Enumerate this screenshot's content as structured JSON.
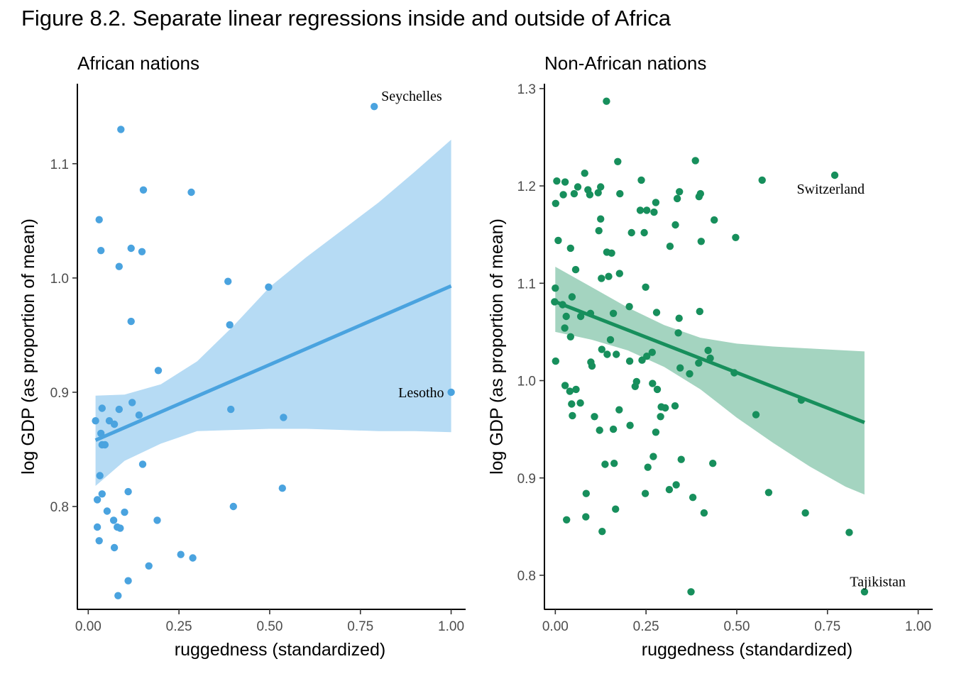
{
  "figure_title": "Figure 8.2. Separate linear regressions inside and outside of Africa",
  "chart_data": [
    {
      "type": "scatter",
      "title": "African nations",
      "xlabel": "ruggedness (standardized)",
      "ylabel": "log GDP (as proportion of mean)",
      "xlim": [
        -0.03,
        1.04
      ],
      "ylim": [
        0.71,
        1.17
      ],
      "xticks": [
        0,
        0.25,
        0.5,
        0.75,
        1
      ],
      "xtick_labels": [
        "0.00",
        "0.25",
        "0.50",
        "0.75",
        "1.00"
      ],
      "yticks": [
        0.8,
        0.9,
        1.0,
        1.1
      ],
      "ytick_labels": [
        "0.8",
        "0.9",
        "1.0",
        "1.1"
      ],
      "color": "#4aa3df",
      "band_color": "#b6dbf4",
      "grid": false,
      "points": [
        {
          "x": 0.788,
          "y": 1.15
        },
        {
          "x": 0.09,
          "y": 1.13
        },
        {
          "x": 0.152,
          "y": 1.077
        },
        {
          "x": 0.284,
          "y": 1.075
        },
        {
          "x": 0.03,
          "y": 1.051
        },
        {
          "x": 0.035,
          "y": 1.024
        },
        {
          "x": 0.118,
          "y": 1.026
        },
        {
          "x": 0.148,
          "y": 1.023
        },
        {
          "x": 0.085,
          "y": 1.01
        },
        {
          "x": 0.385,
          "y": 0.997
        },
        {
          "x": 0.497,
          "y": 0.992
        },
        {
          "x": 0.118,
          "y": 0.962
        },
        {
          "x": 0.39,
          "y": 0.959
        },
        {
          "x": 0.193,
          "y": 0.919
        },
        {
          "x": 1.0,
          "y": 0.9
        },
        {
          "x": 0.121,
          "y": 0.891
        },
        {
          "x": 0.085,
          "y": 0.885
        },
        {
          "x": 0.393,
          "y": 0.885
        },
        {
          "x": 0.038,
          "y": 0.886
        },
        {
          "x": 0.14,
          "y": 0.88
        },
        {
          "x": 0.538,
          "y": 0.878
        },
        {
          "x": 0.02,
          "y": 0.875
        },
        {
          "x": 0.058,
          "y": 0.875
        },
        {
          "x": 0.072,
          "y": 0.872
        },
        {
          "x": 0.035,
          "y": 0.864
        },
        {
          "x": 0.038,
          "y": 0.854
        },
        {
          "x": 0.046,
          "y": 0.854
        },
        {
          "x": 0.15,
          "y": 0.837
        },
        {
          "x": 0.032,
          "y": 0.827
        },
        {
          "x": 0.535,
          "y": 0.816
        },
        {
          "x": 0.11,
          "y": 0.813
        },
        {
          "x": 0.038,
          "y": 0.811
        },
        {
          "x": 0.025,
          "y": 0.806
        },
        {
          "x": 0.4,
          "y": 0.8
        },
        {
          "x": 0.052,
          "y": 0.796
        },
        {
          "x": 0.1,
          "y": 0.795
        },
        {
          "x": 0.19,
          "y": 0.788
        },
        {
          "x": 0.07,
          "y": 0.788
        },
        {
          "x": 0.025,
          "y": 0.782
        },
        {
          "x": 0.08,
          "y": 0.782
        },
        {
          "x": 0.088,
          "y": 0.781
        },
        {
          "x": 0.03,
          "y": 0.77
        },
        {
          "x": 0.072,
          "y": 0.764
        },
        {
          "x": 0.255,
          "y": 0.758
        },
        {
          "x": 0.288,
          "y": 0.755
        },
        {
          "x": 0.167,
          "y": 0.748
        },
        {
          "x": 0.11,
          "y": 0.735
        },
        {
          "x": 0.082,
          "y": 0.722
        }
      ],
      "regression_line": {
        "x": [
          0.02,
          1.0
        ],
        "y": [
          0.858,
          0.993
        ]
      },
      "confidence_band": {
        "x": [
          0.02,
          0.1,
          0.2,
          0.3,
          0.4,
          0.5,
          0.6,
          0.7,
          0.8,
          0.9,
          1.0
        ],
        "upper": [
          0.897,
          0.898,
          0.907,
          0.927,
          0.958,
          0.992,
          1.018,
          1.042,
          1.066,
          1.093,
          1.121
        ],
        "lower": [
          0.818,
          0.84,
          0.855,
          0.866,
          0.867,
          0.868,
          0.868,
          0.867,
          0.866,
          0.866,
          0.865
        ]
      },
      "annotations": [
        {
          "text": "Seychelles",
          "x": 0.788,
          "y": 1.15,
          "anchor": "start",
          "dx": 10,
          "dy": -8
        },
        {
          "text": "Lesotho",
          "x": 1.0,
          "y": 0.9,
          "anchor": "end",
          "dx": -10,
          "dy": 7
        }
      ]
    },
    {
      "type": "scatter",
      "title": "Non-African nations",
      "xlabel": "ruggedness (standardized)",
      "ylabel": "log GDP (as proportion of mean)",
      "xlim": [
        -0.03,
        1.04
      ],
      "ylim": [
        0.765,
        1.305
      ],
      "xticks": [
        0,
        0.25,
        0.5,
        0.75,
        1
      ],
      "xtick_labels": [
        "0.00",
        "0.25",
        "0.50",
        "0.75",
        "1.00"
      ],
      "yticks": [
        0.8,
        0.9,
        1.0,
        1.1,
        1.2,
        1.3
      ],
      "ytick_labels": [
        "0.8",
        "0.9",
        "1.0",
        "1.1",
        "1.2",
        "1.3"
      ],
      "color": "#178f5c",
      "band_color": "#a4d4c0",
      "grid": false,
      "points": [
        {
          "x": 0.141,
          "y": 1.287
        },
        {
          "x": 0.172,
          "y": 1.225
        },
        {
          "x": 0.386,
          "y": 1.226
        },
        {
          "x": 0.081,
          "y": 1.213
        },
        {
          "x": 0.77,
          "y": 1.211
        },
        {
          "x": 0.57,
          "y": 1.206
        },
        {
          "x": 0.237,
          "y": 1.206
        },
        {
          "x": 0.004,
          "y": 1.205
        },
        {
          "x": 0.027,
          "y": 1.204
        },
        {
          "x": 0.062,
          "y": 1.199
        },
        {
          "x": 0.125,
          "y": 1.199
        },
        {
          "x": 0.09,
          "y": 1.196
        },
        {
          "x": 0.342,
          "y": 1.194
        },
        {
          "x": 0.4,
          "y": 1.192
        },
        {
          "x": 0.022,
          "y": 1.191
        },
        {
          "x": 0.052,
          "y": 1.192
        },
        {
          "x": 0.118,
          "y": 1.193
        },
        {
          "x": 0.095,
          "y": 1.191
        },
        {
          "x": 0.178,
          "y": 1.192
        },
        {
          "x": 0.396,
          "y": 1.189
        },
        {
          "x": 0.336,
          "y": 1.187
        },
        {
          "x": 0.277,
          "y": 1.183
        },
        {
          "x": 0.001,
          "y": 1.182
        },
        {
          "x": 0.234,
          "y": 1.175
        },
        {
          "x": 0.252,
          "y": 1.175
        },
        {
          "x": 0.272,
          "y": 1.173
        },
        {
          "x": 0.125,
          "y": 1.166
        },
        {
          "x": 0.438,
          "y": 1.165
        },
        {
          "x": 0.331,
          "y": 1.16
        },
        {
          "x": 0.12,
          "y": 1.154
        },
        {
          "x": 0.21,
          "y": 1.152
        },
        {
          "x": 0.245,
          "y": 1.152
        },
        {
          "x": 0.497,
          "y": 1.147
        },
        {
          "x": 0.008,
          "y": 1.144
        },
        {
          "x": 0.402,
          "y": 1.143
        },
        {
          "x": 0.316,
          "y": 1.138
        },
        {
          "x": 0.042,
          "y": 1.136
        },
        {
          "x": 0.142,
          "y": 1.132
        },
        {
          "x": 0.155,
          "y": 1.131
        },
        {
          "x": 0.056,
          "y": 1.114
        },
        {
          "x": 0.177,
          "y": 1.11
        },
        {
          "x": 0.147,
          "y": 1.107
        },
        {
          "x": 0.127,
          "y": 1.105
        },
        {
          "x": 0.249,
          "y": 1.096
        },
        {
          "x": 0.0,
          "y": 1.095
        },
        {
          "x": 0.046,
          "y": 1.086
        },
        {
          "x": -0.002,
          "y": 1.081
        },
        {
          "x": 0.02,
          "y": 1.078
        },
        {
          "x": 0.204,
          "y": 1.076
        },
        {
          "x": 0.398,
          "y": 1.071
        },
        {
          "x": 0.279,
          "y": 1.07
        },
        {
          "x": 0.16,
          "y": 1.069
        },
        {
          "x": 0.097,
          "y": 1.069
        },
        {
          "x": 0.07,
          "y": 1.066
        },
        {
          "x": 0.03,
          "y": 1.066
        },
        {
          "x": 0.341,
          "y": 1.064
        },
        {
          "x": 0.026,
          "y": 1.054
        },
        {
          "x": 0.339,
          "y": 1.049
        },
        {
          "x": 0.042,
          "y": 1.045
        },
        {
          "x": 0.152,
          "y": 1.042
        },
        {
          "x": 0.128,
          "y": 1.032
        },
        {
          "x": 0.421,
          "y": 1.031
        },
        {
          "x": 0.267,
          "y": 1.029
        },
        {
          "x": 0.168,
          "y": 1.027
        },
        {
          "x": 0.143,
          "y": 1.027
        },
        {
          "x": 0.252,
          "y": 1.025
        },
        {
          "x": 0.427,
          "y": 1.023
        },
        {
          "x": 0.239,
          "y": 1.021
        },
        {
          "x": 0.001,
          "y": 1.02
        },
        {
          "x": 0.205,
          "y": 1.02
        },
        {
          "x": 0.098,
          "y": 1.019
        },
        {
          "x": 0.395,
          "y": 1.018
        },
        {
          "x": 0.101,
          "y": 1.015
        },
        {
          "x": 0.344,
          "y": 1.013
        },
        {
          "x": 0.493,
          "y": 1.008
        },
        {
          "x": 0.37,
          "y": 1.007
        },
        {
          "x": 0.224,
          "y": 0.999
        },
        {
          "x": 0.268,
          "y": 0.997
        },
        {
          "x": 0.027,
          "y": 0.995
        },
        {
          "x": 0.22,
          "y": 0.994
        },
        {
          "x": 0.057,
          "y": 0.991
        },
        {
          "x": 0.281,
          "y": 0.991
        },
        {
          "x": 0.04,
          "y": 0.989
        },
        {
          "x": 0.678,
          "y": 0.98
        },
        {
          "x": 0.045,
          "y": 0.976
        },
        {
          "x": 0.069,
          "y": 0.977
        },
        {
          "x": 0.292,
          "y": 0.973
        },
        {
          "x": 0.303,
          "y": 0.972
        },
        {
          "x": 0.33,
          "y": 0.974
        },
        {
          "x": 0.176,
          "y": 0.97
        },
        {
          "x": 0.047,
          "y": 0.964
        },
        {
          "x": 0.553,
          "y": 0.965
        },
        {
          "x": 0.108,
          "y": 0.963
        },
        {
          "x": 0.29,
          "y": 0.963
        },
        {
          "x": 0.206,
          "y": 0.954
        },
        {
          "x": 0.16,
          "y": 0.95
        },
        {
          "x": 0.122,
          "y": 0.949
        },
        {
          "x": 0.277,
          "y": 0.947
        },
        {
          "x": 0.27,
          "y": 0.922
        },
        {
          "x": 0.347,
          "y": 0.919
        },
        {
          "x": 0.434,
          "y": 0.915
        },
        {
          "x": 0.162,
          "y": 0.915
        },
        {
          "x": 0.137,
          "y": 0.914
        },
        {
          "x": 0.255,
          "y": 0.911
        },
        {
          "x": 0.333,
          "y": 0.893
        },
        {
          "x": 0.314,
          "y": 0.888
        },
        {
          "x": 0.588,
          "y": 0.885
        },
        {
          "x": 0.085,
          "y": 0.884
        },
        {
          "x": 0.248,
          "y": 0.884
        },
        {
          "x": 0.379,
          "y": 0.88
        },
        {
          "x": 0.166,
          "y": 0.868
        },
        {
          "x": 0.689,
          "y": 0.864
        },
        {
          "x": 0.41,
          "y": 0.864
        },
        {
          "x": 0.084,
          "y": 0.86
        },
        {
          "x": 0.031,
          "y": 0.857
        },
        {
          "x": 0.129,
          "y": 0.845
        },
        {
          "x": 0.81,
          "y": 0.844
        },
        {
          "x": 0.852,
          "y": 0.783
        },
        {
          "x": 0.374,
          "y": 0.783
        }
      ],
      "regression_line": {
        "x": [
          0.0,
          0.852
        ],
        "y": [
          1.081,
          0.957
        ]
      },
      "confidence_band": {
        "x": [
          0.0,
          0.1,
          0.2,
          0.3,
          0.4,
          0.5,
          0.6,
          0.7,
          0.8,
          0.852
        ],
        "upper": [
          1.117,
          1.096,
          1.075,
          1.057,
          1.044,
          1.038,
          1.035,
          1.033,
          1.031,
          1.03
        ],
        "lower": [
          1.05,
          1.042,
          1.031,
          1.014,
          0.991,
          0.962,
          0.936,
          0.912,
          0.891,
          0.883
        ]
      },
      "annotations": [
        {
          "text": "Switzerland",
          "x": 0.77,
          "y": 1.211,
          "anchor": "end",
          "dx": 42,
          "dy": 26
        },
        {
          "text": "Tajikistan",
          "x": 0.852,
          "y": 0.783,
          "anchor": "end",
          "dx": 58,
          "dy": -8
        }
      ]
    }
  ]
}
